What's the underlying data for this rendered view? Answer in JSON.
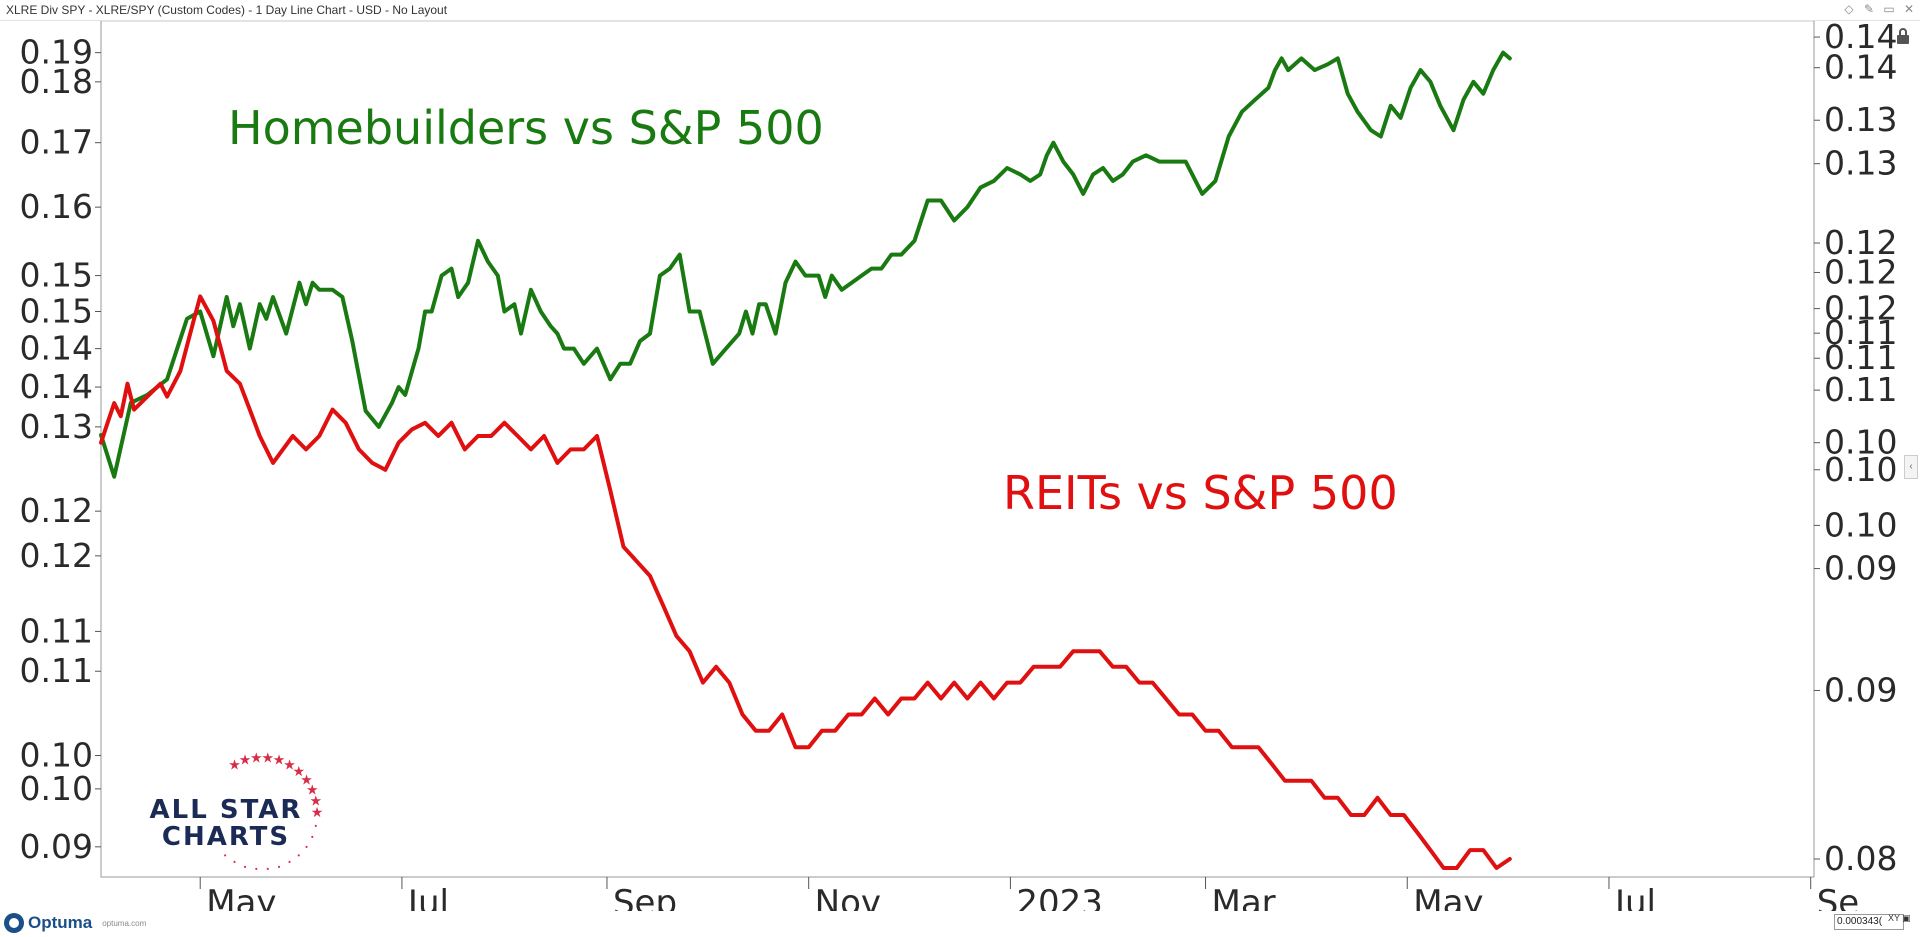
{
  "window": {
    "title": "XLRE Div SPY - XLRE/SPY (Custom Codes) - 1 Day Line Chart - USD - No Layout",
    "controls": [
      "◇",
      "✎",
      "▭",
      "✕"
    ]
  },
  "chart_data": {
    "type": "line",
    "left_axis": {
      "scale": "log",
      "ylim": [
        0.0895,
        0.1945
      ],
      "tick_values": [
        0.19,
        0.185,
        0.175,
        0.165,
        0.155,
        0.15,
        0.145,
        0.14,
        0.135,
        0.125,
        0.12,
        0.112,
        0.108,
        0.1,
        0.097,
        0.092
      ],
      "tick_labels": [
        "0.19",
        "0.18",
        "0.17",
        "0.16",
        "0.15",
        "0.15",
        "0.14",
        "0.14",
        "0.13",
        "0.12",
        "0.12",
        "0.11",
        "0.11",
        "0.10",
        "0.10",
        "0.09"
      ]
    },
    "right_axis": {
      "scale": "log",
      "ylim": [
        0.0795,
        0.1435
      ],
      "tick_values": [
        0.1425,
        0.1395,
        0.1345,
        0.1305,
        0.1235,
        0.121,
        0.118,
        0.116,
        0.114,
        0.1115,
        0.1075,
        0.1055,
        0.1015,
        0.0985,
        0.0905,
        0.0805
      ],
      "tick_labels": [
        "0.14",
        "0.14",
        "0.13",
        "0.13",
        "0.12",
        "0.12",
        "0.12",
        "0.11",
        "0.11",
        "0.11",
        "0.10",
        "0.10",
        "0.10",
        "0.09",
        "0.09",
        "0.08"
      ]
    },
    "x_axis": {
      "tick_labels": [
        "May",
        "Jul",
        "Sep",
        "Nov",
        "2023",
        "Mar",
        "May",
        "Jul",
        "Se"
      ],
      "tick_days": [
        30,
        91,
        153,
        214,
        275,
        334,
        395,
        456,
        517
      ],
      "xlim_days": [
        0,
        518
      ]
    },
    "series": [
      {
        "name": "Homebuilders vs S&P 500",
        "axis": "left",
        "color": "#1a7a12",
        "x_days": [
          0,
          4,
          9,
          14,
          20,
          26,
          30,
          34,
          38,
          40,
          42,
          45,
          48,
          50,
          52,
          56,
          60,
          62,
          64,
          66,
          70,
          73,
          76,
          80,
          84,
          88,
          90,
          92,
          94,
          96,
          98,
          100,
          103,
          106,
          108,
          111,
          114,
          117,
          120,
          122,
          125,
          127,
          130,
          133,
          136,
          138,
          140,
          143,
          146,
          150,
          154,
          157,
          160,
          163,
          166,
          169,
          172,
          175,
          178,
          181,
          185,
          189,
          193,
          195,
          197,
          199,
          201,
          204,
          207,
          210,
          213,
          217,
          219,
          221,
          224,
          227,
          230,
          233,
          236,
          239,
          242,
          246,
          250,
          254,
          258,
          262,
          266,
          270,
          274,
          278,
          281,
          284,
          286,
          288,
          291,
          294,
          297,
          300,
          303,
          306,
          309,
          312,
          316,
          320,
          324,
          328,
          333,
          337,
          341,
          345,
          349,
          353,
          355,
          357,
          359,
          363,
          367,
          371,
          374,
          377,
          380,
          384,
          387,
          390,
          393,
          396,
          399,
          402,
          405,
          409,
          412,
          415,
          418,
          421,
          424,
          426
        ],
        "values": [
          0.134,
          0.129,
          0.138,
          0.139,
          0.141,
          0.149,
          0.15,
          0.144,
          0.152,
          0.148,
          0.151,
          0.145,
          0.151,
          0.149,
          0.152,
          0.147,
          0.154,
          0.151,
          0.154,
          0.153,
          0.153,
          0.152,
          0.146,
          0.137,
          0.135,
          0.138,
          0.14,
          0.139,
          0.142,
          0.145,
          0.15,
          0.15,
          0.155,
          0.156,
          0.152,
          0.154,
          0.16,
          0.157,
          0.155,
          0.15,
          0.151,
          0.147,
          0.153,
          0.15,
          0.148,
          0.147,
          0.145,
          0.145,
          0.143,
          0.145,
          0.141,
          0.143,
          0.143,
          0.146,
          0.147,
          0.155,
          0.156,
          0.158,
          0.15,
          0.15,
          0.143,
          0.145,
          0.147,
          0.15,
          0.147,
          0.151,
          0.151,
          0.147,
          0.154,
          0.157,
          0.155,
          0.155,
          0.152,
          0.155,
          0.153,
          0.154,
          0.155,
          0.156,
          0.156,
          0.158,
          0.158,
          0.16,
          0.166,
          0.166,
          0.163,
          0.165,
          0.168,
          0.169,
          0.171,
          0.17,
          0.169,
          0.17,
          0.173,
          0.175,
          0.172,
          0.17,
          0.167,
          0.17,
          0.171,
          0.169,
          0.17,
          0.172,
          0.173,
          0.172,
          0.172,
          0.172,
          0.167,
          0.169,
          0.176,
          0.18,
          0.182,
          0.184,
          0.187,
          0.189,
          0.187,
          0.189,
          0.187,
          0.188,
          0.189,
          0.183,
          0.18,
          0.177,
          0.176,
          0.181,
          0.179,
          0.184,
          0.187,
          0.185,
          0.181,
          0.177,
          0.182,
          0.185,
          0.183,
          0.187,
          0.19,
          0.189
        ],
        "label_text": "Homebuilders vs S&P 500"
      },
      {
        "name": "REITs vs S&P 500",
        "axis": "right",
        "color": "#e01010",
        "x_days": [
          0,
          2,
          4,
          6,
          8,
          10,
          14,
          18,
          20,
          24,
          26,
          28,
          30,
          32,
          34,
          36,
          38,
          42,
          45,
          48,
          52,
          55,
          58,
          62,
          66,
          70,
          74,
          78,
          82,
          86,
          90,
          94,
          98,
          102,
          106,
          110,
          114,
          118,
          122,
          126,
          130,
          134,
          138,
          142,
          146,
          150,
          154,
          158,
          162,
          166,
          170,
          174,
          178,
          182,
          186,
          190,
          194,
          198,
          202,
          206,
          210,
          214,
          218,
          222,
          226,
          230,
          234,
          238,
          242,
          246,
          250,
          254,
          258,
          262,
          266,
          270,
          274,
          278,
          282,
          286,
          290,
          294,
          298,
          302,
          306,
          310,
          314,
          318,
          322,
          326,
          330,
          334,
          338,
          342,
          346,
          350,
          354,
          358,
          362,
          366,
          370,
          374,
          378,
          382,
          386,
          390,
          394,
          398,
          402,
          406,
          410,
          414,
          418,
          422,
          426
        ],
        "values": [
          0.1075,
          0.109,
          0.1105,
          0.1095,
          0.112,
          0.11,
          0.111,
          0.112,
          0.111,
          0.113,
          0.115,
          0.117,
          0.119,
          0.118,
          0.117,
          0.115,
          0.113,
          0.112,
          0.11,
          0.108,
          0.106,
          0.107,
          0.108,
          0.107,
          0.108,
          0.11,
          0.109,
          0.107,
          0.106,
          0.1055,
          0.1075,
          0.1085,
          0.109,
          0.108,
          0.109,
          0.107,
          0.108,
          0.108,
          0.109,
          0.108,
          0.107,
          0.108,
          0.106,
          0.107,
          0.107,
          0.108,
          0.104,
          0.1,
          0.099,
          0.098,
          0.096,
          0.094,
          0.093,
          0.091,
          0.092,
          0.091,
          0.089,
          0.088,
          0.088,
          0.089,
          0.087,
          0.087,
          0.088,
          0.088,
          0.089,
          0.089,
          0.09,
          0.089,
          0.09,
          0.09,
          0.091,
          0.09,
          0.091,
          0.09,
          0.091,
          0.09,
          0.091,
          0.091,
          0.092,
          0.092,
          0.092,
          0.093,
          0.093,
          0.093,
          0.092,
          0.092,
          0.091,
          0.091,
          0.09,
          0.089,
          0.089,
          0.088,
          0.088,
          0.087,
          0.087,
          0.087,
          0.086,
          0.085,
          0.085,
          0.085,
          0.084,
          0.084,
          0.083,
          0.083,
          0.084,
          0.083,
          0.083,
          0.082,
          0.081,
          0.08,
          0.08,
          0.081,
          0.081,
          0.08,
          0.0805
        ],
        "label_text": "REITs vs S&P 500"
      }
    ],
    "grid": false,
    "legend": "in-chart text labels"
  },
  "watermark": {
    "line1": "ALL STAR",
    "line2": "CHARTS",
    "star_color": "#d62d49",
    "text_color": "#1c2b55"
  },
  "footer": {
    "brand": "Optuma",
    "url": "optuma.com",
    "readout": "0.000343(",
    "readout_label": "XY"
  }
}
